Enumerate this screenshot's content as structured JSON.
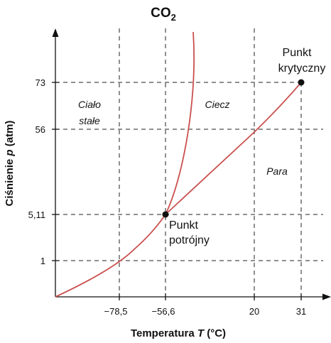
{
  "chart_data": {
    "type": "line",
    "title": "CO",
    "title_sub": "2",
    "xlabel_prefix": "Temperatura ",
    "xlabel_var": "T",
    "xlabel_suffix": " (°C)",
    "ylabel_prefix": "Ciśnienie ",
    "ylabel_var": "p",
    "ylabel_suffix": " (atm)",
    "x_ticks": [
      "−78,5",
      "−56,6",
      "20",
      "31"
    ],
    "y_ticks": [
      "1",
      "5,11",
      "56",
      "73"
    ],
    "regions": {
      "solid_line1": "Ciało",
      "solid_line2": "stałe",
      "liquid": "Ciecz",
      "gas": "Para"
    },
    "points": [
      {
        "name": "triple",
        "x": "−56,6",
        "y": "5,11",
        "label_line1": "Punkt",
        "label_line2": "potrójny"
      },
      {
        "name": "critical",
        "x": "31",
        "y": "73",
        "label_line1": "Punkt",
        "label_line2": "krytyczny"
      }
    ],
    "series": [
      {
        "curve": "sublimation",
        "passes_through": [
          [
            "−78,5",
            "1"
          ],
          [
            "−56,6",
            "5,11"
          ]
        ]
      },
      {
        "curve": "melting",
        "from": [
          "−56,6",
          "5,11"
        ]
      },
      {
        "curve": "vaporization",
        "passes_through": [
          [
            "−56,6",
            "5,11"
          ],
          [
            "20",
            "56"
          ],
          [
            "31",
            "73"
          ]
        ]
      }
    ],
    "grid": "dashed at tick values",
    "curve_color": "#c9504f"
  }
}
